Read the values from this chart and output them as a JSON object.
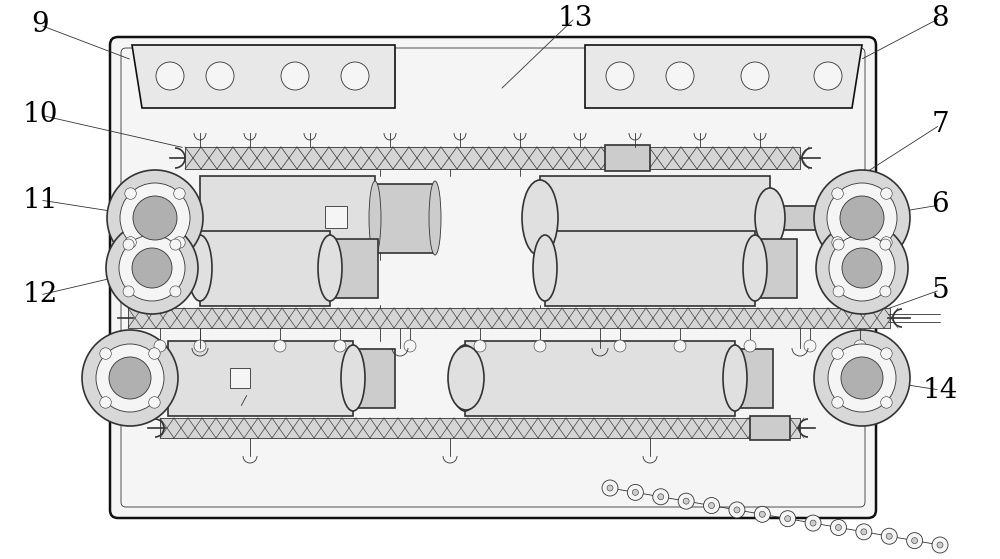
{
  "bg_color": "#ffffff",
  "lc": "#333333",
  "lc_dark": "#111111",
  "fill_plate": "#f5f5f5",
  "fill_bracket": "#e8e8e8",
  "fill_cyl": "#e0e0e0",
  "fill_dark": "#cccccc",
  "fill_chain": "#d5d5d5",
  "figsize": [
    10.0,
    5.59
  ],
  "dpi": 100,
  "lw_thick": 1.8,
  "lw_main": 1.2,
  "lw_thin": 0.6,
  "label_fontsize": 20
}
